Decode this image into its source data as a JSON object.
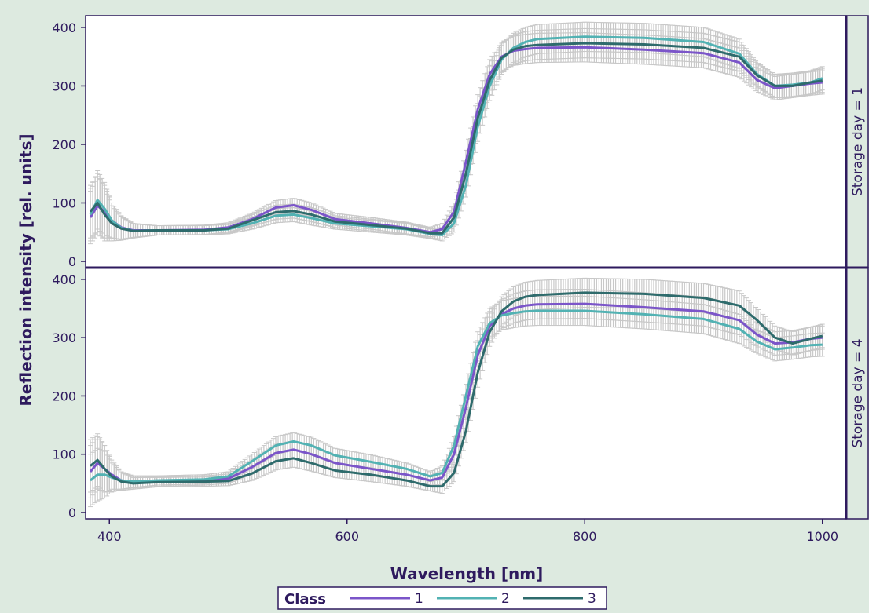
{
  "chart_data": {
    "type": "line",
    "xlabel": "Wavelength [nm]",
    "ylabel": "Reflection intensity [rel. units]",
    "xlim": [
      380,
      1020
    ],
    "ylim": [
      0,
      420
    ],
    "x_ticks": [
      "400",
      "600",
      "800",
      "1000"
    ],
    "y_ticks": [
      "0",
      "100",
      "200",
      "300",
      "400"
    ],
    "grid": false,
    "error_bars": true,
    "legend": {
      "title": "Class",
      "position": "bottom",
      "entries": [
        {
          "label": "1",
          "color": "#7b55c9"
        },
        {
          "label": "2",
          "color": "#52b2b3"
        },
        {
          "label": "3",
          "color": "#2e6b6c"
        }
      ]
    },
    "panels": [
      {
        "strip": "Storage day = 1",
        "series": [
          {
            "name": "1",
            "x": [
              384,
              390,
              396,
              402,
              410,
              420,
              440,
              480,
              500,
              520,
              540,
              555,
              570,
              590,
              620,
              650,
              670,
              680,
              690,
              700,
              710,
              720,
              730,
              740,
              750,
              760,
              800,
              850,
              900,
              930,
              945,
              960,
              975,
              990,
              1000
            ],
            "y": [
              75,
              95,
              85,
              70,
              58,
              53,
              53,
              54,
              58,
              72,
              92,
              96,
              88,
              72,
              65,
              57,
              50,
              55,
              85,
              170,
              260,
              320,
              350,
              360,
              363,
              365,
              366,
              362,
              356,
              340,
              310,
              296,
              300,
              304,
              306
            ],
            "err": [
              45,
              50,
              45,
              30,
              20,
              12,
              8,
              8,
              8,
              10,
              12,
              12,
              12,
              10,
              10,
              10,
              8,
              10,
              15,
              20,
              25,
              25,
              25,
              25,
              25,
              25,
              25,
              25,
              25,
              25,
              20,
              20,
              20,
              20,
              20
            ]
          },
          {
            "name": "2",
            "x": [
              384,
              390,
              396,
              402,
              410,
              420,
              440,
              480,
              500,
              520,
              540,
              555,
              570,
              590,
              620,
              650,
              670,
              680,
              690,
              700,
              710,
              720,
              730,
              740,
              750,
              760,
              800,
              850,
              900,
              930,
              945,
              960,
              975,
              990,
              1000
            ],
            "y": [
              80,
              105,
              90,
              70,
              57,
              52,
              53,
              53,
              55,
              65,
              78,
              80,
              74,
              65,
              60,
              55,
              47,
              45,
              65,
              130,
              230,
              300,
              345,
              365,
              375,
              380,
              384,
              382,
              375,
              355,
              320,
              300,
              302,
              306,
              313
            ],
            "err": [
              45,
              50,
              45,
              30,
              20,
              12,
              8,
              8,
              8,
              10,
              12,
              12,
              12,
              10,
              10,
              10,
              8,
              10,
              15,
              20,
              25,
              25,
              25,
              25,
              25,
              25,
              25,
              25,
              25,
              25,
              20,
              20,
              20,
              20,
              20
            ]
          },
          {
            "name": "3",
            "x": [
              384,
              390,
              396,
              402,
              410,
              420,
              440,
              480,
              500,
              520,
              540,
              555,
              570,
              590,
              620,
              650,
              670,
              680,
              690,
              700,
              710,
              720,
              730,
              740,
              750,
              760,
              800,
              850,
              900,
              930,
              945,
              960,
              975,
              990,
              1000
            ],
            "y": [
              85,
              100,
              80,
              65,
              56,
              52,
              53,
              53,
              56,
              70,
              84,
              86,
              80,
              68,
              62,
              56,
              48,
              48,
              75,
              150,
              245,
              310,
              348,
              362,
              368,
              370,
              373,
              371,
              365,
              350,
              318,
              300,
              300,
              306,
              309
            ],
            "err": [
              45,
              50,
              45,
              30,
              20,
              12,
              8,
              8,
              8,
              10,
              12,
              12,
              12,
              10,
              10,
              10,
              8,
              10,
              15,
              20,
              25,
              25,
              25,
              25,
              25,
              25,
              25,
              25,
              25,
              25,
              20,
              20,
              20,
              20,
              20
            ]
          }
        ]
      },
      {
        "strip": "Storage day = 4",
        "series": [
          {
            "name": "1",
            "x": [
              384,
              390,
              396,
              402,
              410,
              420,
              440,
              480,
              500,
              520,
              540,
              555,
              570,
              590,
              620,
              650,
              670,
              680,
              690,
              700,
              710,
              720,
              730,
              740,
              750,
              760,
              800,
              850,
              900,
              930,
              945,
              960,
              975,
              990,
              1000
            ],
            "y": [
              70,
              85,
              75,
              65,
              55,
              52,
              53,
              55,
              58,
              78,
              102,
              108,
              100,
              85,
              75,
              65,
              55,
              60,
              100,
              180,
              270,
              320,
              340,
              350,
              355,
              357,
              358,
              352,
              345,
              330,
              305,
              290,
              292,
              298,
              300
            ],
            "err": [
              45,
              45,
              40,
              25,
              15,
              10,
              8,
              8,
              8,
              12,
              15,
              15,
              14,
              12,
              12,
              10,
              8,
              12,
              15,
              20,
              25,
              25,
              25,
              25,
              25,
              25,
              25,
              25,
              25,
              25,
              20,
              20,
              20,
              20,
              20
            ]
          },
          {
            "name": "2",
            "x": [
              384,
              390,
              396,
              402,
              410,
              420,
              440,
              480,
              500,
              520,
              540,
              555,
              570,
              590,
              620,
              650,
              670,
              680,
              690,
              700,
              710,
              720,
              730,
              740,
              750,
              760,
              800,
              850,
              900,
              930,
              945,
              960,
              975,
              990,
              1000
            ],
            "y": [
              55,
              65,
              65,
              60,
              55,
              53,
              55,
              57,
              62,
              88,
              115,
              122,
              115,
              98,
              87,
              75,
              62,
              68,
              115,
              200,
              285,
              325,
              338,
              342,
              345,
              346,
              346,
              340,
              332,
              315,
              293,
              280,
              283,
              287,
              288
            ],
            "err": [
              45,
              45,
              40,
              25,
              15,
              10,
              8,
              8,
              8,
              12,
              15,
              15,
              14,
              12,
              12,
              10,
              8,
              12,
              15,
              20,
              25,
              25,
              25,
              25,
              25,
              25,
              25,
              25,
              25,
              25,
              20,
              20,
              20,
              20,
              20
            ]
          },
          {
            "name": "3",
            "x": [
              384,
              390,
              396,
              402,
              410,
              420,
              440,
              480,
              500,
              520,
              540,
              555,
              570,
              590,
              620,
              650,
              670,
              680,
              690,
              700,
              710,
              720,
              730,
              740,
              750,
              760,
              800,
              850,
              900,
              930,
              945,
              960,
              975,
              990,
              1000
            ],
            "y": [
              80,
              90,
              75,
              62,
              53,
              50,
              52,
              53,
              54,
              67,
              88,
              93,
              85,
              72,
              65,
              55,
              45,
              45,
              68,
              140,
              240,
              310,
              345,
              362,
              370,
              373,
              377,
              375,
              368,
              355,
              330,
              300,
              290,
              298,
              303
            ],
            "err": [
              45,
              45,
              40,
              25,
              15,
              10,
              8,
              8,
              8,
              12,
              15,
              15,
              14,
              12,
              12,
              10,
              8,
              12,
              15,
              20,
              25,
              25,
              25,
              25,
              25,
              25,
              25,
              25,
              25,
              25,
              20,
              20,
              20,
              20,
              20
            ]
          }
        ]
      }
    ]
  }
}
